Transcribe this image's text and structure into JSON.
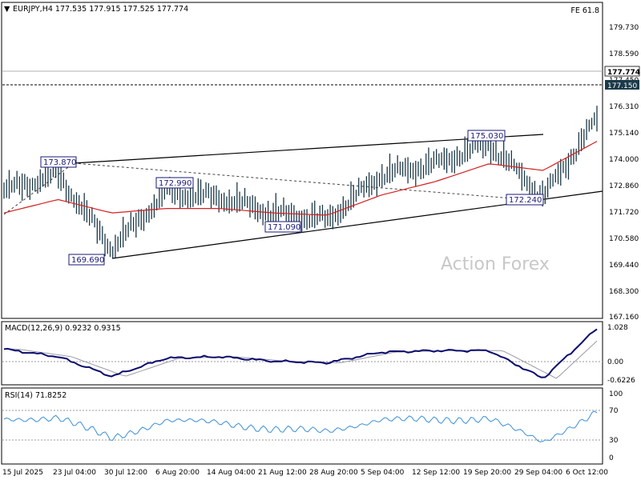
{
  "header": {
    "symbol_line": "EURJPY,H4  177.535 177.915 177.525 177.774",
    "fe_label": "FE 61.8"
  },
  "watermark": "Action Forex",
  "colors": {
    "bars": "#1c3a4a",
    "ma": "#d42020",
    "macd_main": "#0b0b6e",
    "macd_signal": "#9a9aa8",
    "rsi": "#3a8fd8",
    "label_border": "#1a1a7a",
    "axis": "#000000"
  },
  "price_axis": {
    "ticks": [
      "179.730",
      "178.590",
      "177.450",
      "176.310",
      "175.140",
      "174.000",
      "172.860",
      "171.720",
      "170.580",
      "169.440",
      "168.300",
      "167.160"
    ],
    "current_price": "177.774",
    "level_label": "177.150"
  },
  "annotations": [
    {
      "text": "173.870"
    },
    {
      "text": "169.690"
    },
    {
      "text": "172.990"
    },
    {
      "text": "171.090"
    },
    {
      "text": "175.030"
    },
    {
      "text": "172.240"
    }
  ],
  "macd": {
    "title": "MACD(12,26,9) 0.9232 0.9315",
    "ticks": [
      "1.028",
      "0.00",
      "-0.6226"
    ]
  },
  "rsi": {
    "title": "RSI(14) 71.8252",
    "ticks": [
      "100",
      "70",
      "30",
      "0"
    ]
  },
  "time_axis": {
    "ticks": [
      "15 Jul 2025",
      "23 Jul 04:00",
      "30 Jul 12:00",
      "6 Aug 20:00",
      "14 Aug 04:00",
      "21 Aug 12:00",
      "28 Aug 20:00",
      "5 Sep 04:00",
      "12 Sep 12:00",
      "19 Sep 20:00",
      "29 Sep 04:00",
      "6 Oct 12:00"
    ]
  },
  "chart_data": {
    "type": "line",
    "title": "EURJPY,H4",
    "x": [
      "15 Jul 2025",
      "23 Jul 04:00",
      "30 Jul 12:00",
      "6 Aug 20:00",
      "14 Aug 04:00",
      "21 Aug 12:00",
      "28 Aug 20:00",
      "5 Sep 04:00",
      "12 Sep 12:00",
      "19 Sep 20:00",
      "29 Sep 04:00",
      "6 Oct 12:00"
    ],
    "series": [
      {
        "values": [
          172.8,
          173.5,
          170.2,
          172.7,
          172.5,
          171.8,
          171.5,
          173.5,
          174.0,
          174.9,
          172.5,
          176.0
        ]
      },
      {
        "values": [
          171.8,
          172.4,
          171.8,
          172.0,
          172.0,
          171.8,
          171.7,
          172.6,
          173.2,
          174.0,
          173.7,
          175.0
        ]
      }
    ],
    "ohlc_last": {
      "open": 177.535,
      "high": 177.915,
      "low": 177.525,
      "close": 177.774
    },
    "price_points": [
      {
        "date": "23 Jul 04:00",
        "label": "173.870",
        "value": 173.87
      },
      {
        "date": "30 Jul 12:00",
        "label": "169.690",
        "value": 169.69
      },
      {
        "date": "6 Aug 20:00",
        "label": "172.990",
        "value": 172.99
      },
      {
        "date": "21 Aug 12:00",
        "label": "171.090",
        "value": 171.09
      },
      {
        "date": "19 Sep 20:00",
        "label": "175.030",
        "value": 175.03
      },
      {
        "date": "29 Sep 04:00",
        "label": "172.240",
        "value": 172.24
      }
    ],
    "horizontal_levels": [
      177.774,
      177.15
    ],
    "ylim": [
      167.16,
      180.6
    ],
    "macd": {
      "name": "MACD(12,26,9)",
      "main": 0.9232,
      "signal": 0.9315,
      "values": [
        0.35,
        0.1,
        -0.55,
        0.05,
        0.1,
        -0.05,
        -0.1,
        0.25,
        0.3,
        0.3,
        -0.62,
        1.03
      ]
    },
    "rsi": {
      "name": "RSI(14)",
      "value": 71.8252,
      "values": [
        60,
        62,
        32,
        58,
        55,
        45,
        42,
        60,
        58,
        62,
        25,
        72
      ]
    },
    "grid": false
  }
}
